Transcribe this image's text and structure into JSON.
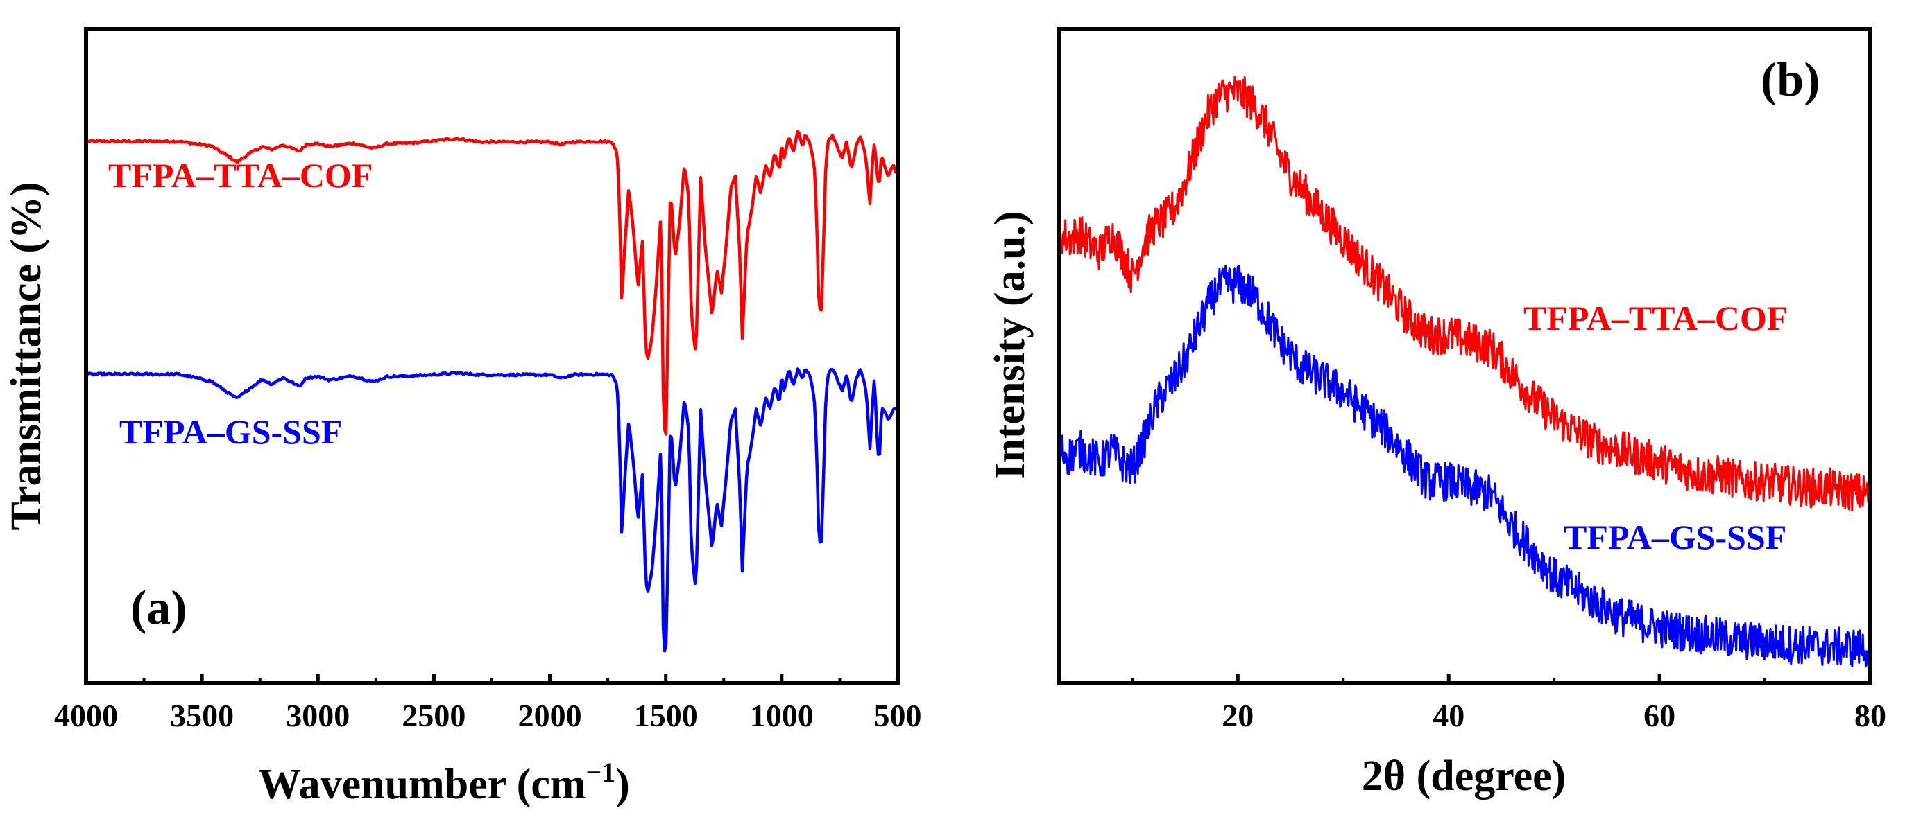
{
  "colors": {
    "red": "#ff0000",
    "blue": "#0000ff",
    "axis": "#000000"
  },
  "chart_data": [
    {
      "id": "panel-a",
      "type": "line",
      "panel_label": "(a)",
      "xlabel": "Wavenumber (cm",
      "xlabel_sup": "−1",
      "xlabel_close": ")",
      "ylabel": "Transmittance (%)",
      "xlim": [
        4000,
        500
      ],
      "xticks": [
        4000,
        3500,
        3000,
        2500,
        2000,
        1500,
        1000,
        500
      ],
      "xtick_labels": [
        "4000",
        "3500",
        "3000",
        "2500",
        "2000",
        "1500",
        "1000",
        "500"
      ],
      "ylim": [
        0,
        100
      ],
      "series": [
        {
          "name": "TFPA–TTA–COF",
          "color": "#ff0000",
          "baseline": 90,
          "x": [
            4000,
            3600,
            3460,
            3380,
            3350,
            3300,
            3240,
            3200,
            3150,
            3080,
            3050,
            3000,
            2950,
            2850,
            2760,
            2700,
            2600,
            2400,
            2370,
            2300,
            2000,
            1950,
            1900,
            1800,
            1730,
            1710,
            1700,
            1690,
            1680,
            1660,
            1640,
            1620,
            1600,
            1590,
            1580,
            1560,
            1540,
            1520,
            1510,
            1500,
            1490,
            1480,
            1460,
            1440,
            1420,
            1400,
            1390,
            1370,
            1360,
            1350,
            1330,
            1310,
            1300,
            1280,
            1260,
            1240,
            1220,
            1200,
            1180,
            1170,
            1160,
            1150,
            1130,
            1110,
            1090,
            1070,
            1050,
            1030,
            1010,
            1000,
            990,
            970,
            950,
            930,
            910,
            900,
            880,
            860,
            850,
            840,
            830,
            820,
            810,
            800,
            780,
            760,
            740,
            720,
            700,
            680,
            660,
            640,
            630,
            620,
            610,
            600,
            590,
            580,
            570,
            560,
            540,
            520,
            500
          ],
          "y": [
            90,
            90,
            89.2,
            87.3,
            86.4,
            87.8,
            89.1,
            88.6,
            89.4,
            88.3,
            89.5,
            89.6,
            89.1,
            89.7,
            88.8,
            89.6,
            89.7,
            90.5,
            90.3,
            89.9,
            89.9,
            89.5,
            89.9,
            90,
            89.9,
            88,
            80,
            62,
            70,
            82,
            75,
            65,
            73,
            58,
            52,
            56,
            66,
            78,
            43,
            38,
            60,
            82,
            70,
            76,
            86,
            80,
            60,
            53,
            68,
            84,
            72,
            64,
            60,
            68,
            64,
            72,
            82,
            84,
            70,
            56,
            65,
            74,
            78,
            84,
            81,
            86,
            84,
            88,
            85,
            90,
            87,
            91,
            88,
            92,
            89,
            91,
            90,
            86,
            78,
            62,
            60,
            72,
            86,
            90,
            91,
            89,
            87,
            90,
            85,
            89,
            91,
            88,
            84,
            79,
            86,
            90,
            85,
            82,
            88,
            86,
            84,
            86,
            84
          ]
        },
        {
          "name": "TFPA–GS-SSF",
          "color": "#0000ff",
          "baseline": 50,
          "x": [
            4000,
            3600,
            3460,
            3380,
            3350,
            3300,
            3240,
            3200,
            3150,
            3080,
            3050,
            3000,
            2950,
            2850,
            2760,
            2700,
            2600,
            2400,
            2370,
            2300,
            2000,
            1950,
            1900,
            1800,
            1730,
            1710,
            1700,
            1690,
            1680,
            1660,
            1640,
            1620,
            1600,
            1590,
            1580,
            1560,
            1540,
            1520,
            1510,
            1500,
            1490,
            1480,
            1460,
            1440,
            1420,
            1400,
            1390,
            1370,
            1360,
            1350,
            1330,
            1310,
            1300,
            1280,
            1260,
            1240,
            1220,
            1200,
            1180,
            1170,
            1160,
            1150,
            1130,
            1110,
            1090,
            1070,
            1050,
            1030,
            1010,
            1000,
            990,
            970,
            950,
            930,
            910,
            900,
            880,
            860,
            850,
            840,
            830,
            820,
            810,
            800,
            780,
            760,
            740,
            720,
            700,
            680,
            660,
            640,
            630,
            620,
            610,
            600,
            590,
            580,
            570,
            560,
            540,
            520,
            500
          ],
          "y": [
            50,
            50,
            48.8,
            46.6,
            45.8,
            47.4,
            49.1,
            48.3,
            49.4,
            47.9,
            49.4,
            49.6,
            49.0,
            49.7,
            48.7,
            49.6,
            49.7,
            50.2,
            50.1,
            49.9,
            49.9,
            49.3,
            49.9,
            50,
            49.9,
            48,
            40,
            22,
            30,
            42,
            35,
            25,
            33,
            18,
            12,
            16,
            26,
            38,
            3,
            2,
            20,
            42,
            30,
            36,
            46,
            40,
            20,
            13,
            28,
            44,
            32,
            24,
            20,
            28,
            24,
            32,
            42,
            44,
            30,
            16,
            25,
            34,
            38,
            44,
            41,
            46,
            44,
            48,
            45,
            50,
            47,
            51,
            48,
            51,
            49,
            51,
            50,
            46,
            38,
            22,
            20,
            32,
            46,
            50,
            51,
            49,
            47,
            50,
            45,
            49,
            51,
            48,
            44,
            37,
            44,
            50,
            40,
            34,
            44,
            44,
            42,
            44,
            44
          ]
        }
      ],
      "series_labels": [
        "TFPA–TTA–COF",
        "TFPA–GS-SSF"
      ]
    },
    {
      "id": "panel-b",
      "type": "line",
      "panel_label": "(b)",
      "xlabel": "2θ (degree)",
      "ylabel": "Intensity (a.u.)",
      "xlim": [
        3,
        80
      ],
      "xticks": [
        20,
        40,
        60,
        80
      ],
      "xtick_labels": [
        "20",
        "40",
        "60",
        "80"
      ],
      "minor_xticks": [
        10,
        30,
        50,
        70
      ],
      "ylim": [
        0,
        100
      ],
      "series": [
        {
          "name": "TFPA–TTA–COF",
          "color": "#ff0000",
          "noise": 2.2,
          "x": [
            3,
            4,
            5,
            6,
            7,
            8,
            9,
            10,
            11,
            12,
            13,
            14,
            15,
            16,
            17,
            18,
            19,
            20,
            21,
            22,
            23,
            24,
            25,
            26,
            27,
            28,
            29,
            30,
            32,
            34,
            36,
            38,
            40,
            42,
            44,
            46,
            48,
            50,
            52,
            54,
            56,
            58,
            60,
            62,
            64,
            66,
            68,
            70,
            72,
            74,
            76,
            78,
            80
          ],
          "y": [
            70,
            69,
            70,
            68,
            67,
            70,
            67,
            63,
            68,
            71,
            72,
            74,
            78,
            83,
            88,
            91,
            92,
            92,
            91,
            89,
            86,
            82,
            79,
            77,
            75,
            73,
            71,
            69,
            65,
            61,
            57,
            54,
            54,
            53,
            52,
            48,
            44,
            41,
            39,
            37,
            36,
            35,
            34,
            33,
            32,
            32,
            31,
            31,
            30.5,
            30,
            30,
            29.5,
            29
          ]
        },
        {
          "name": "TFPA–GS-SSF",
          "color": "#0000ff",
          "noise": 2.2,
          "x": [
            3,
            4,
            5,
            6,
            7,
            8,
            9,
            10,
            11,
            12,
            13,
            14,
            15,
            16,
            17,
            18,
            19,
            20,
            21,
            22,
            23,
            24,
            25,
            26,
            27,
            28,
            29,
            30,
            32,
            34,
            36,
            38,
            40,
            42,
            44,
            46,
            48,
            50,
            52,
            54,
            56,
            58,
            60,
            62,
            64,
            66,
            68,
            70,
            72,
            74,
            76,
            78,
            80
          ],
          "y": [
            36,
            35,
            36,
            35,
            34,
            36,
            34,
            33,
            37,
            42,
            45,
            47,
            50,
            54,
            58,
            61,
            62,
            62,
            61,
            59,
            56,
            53,
            51,
            49,
            48,
            47,
            46,
            45,
            42,
            39,
            35,
            31,
            31,
            30,
            29,
            24,
            20,
            16,
            14,
            12,
            10,
            9,
            8,
            7.5,
            7,
            6.5,
            6,
            5.8,
            5.5,
            5.3,
            5,
            5,
            4.8
          ]
        }
      ],
      "series_labels": [
        "TFPA–TTA–COF",
        "TFPA–GS-SSF"
      ]
    }
  ]
}
